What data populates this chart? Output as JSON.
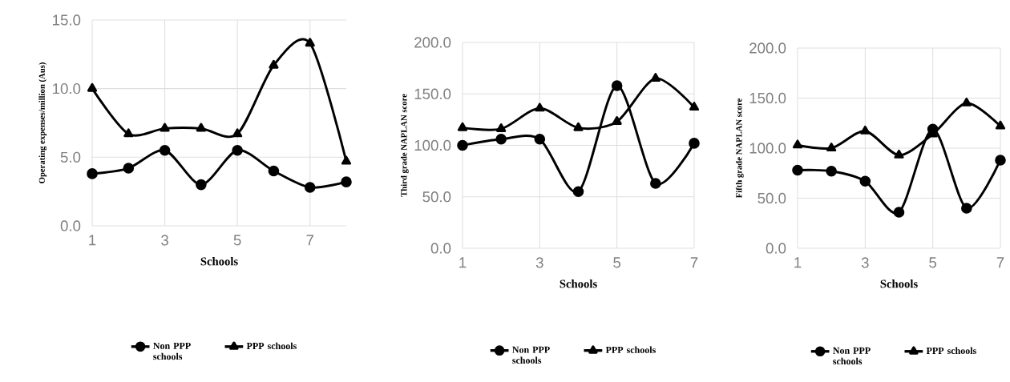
{
  "chart_data": [
    {
      "type": "line",
      "xlabel": "Schools",
      "ylabel": "Operating expenses/million (Aus)",
      "x": [
        1,
        2,
        3,
        4,
        5,
        6,
        7,
        8
      ],
      "xlim": [
        1,
        8
      ],
      "xticks": [
        1,
        3,
        5,
        7
      ],
      "ylim": [
        0,
        15
      ],
      "yticks": [
        {
          "value": 0,
          "label": "0.0"
        },
        {
          "value": 5,
          "label": "5.0"
        },
        {
          "value": 10,
          "label": "10.0"
        },
        {
          "value": 15,
          "label": "15.0"
        }
      ],
      "grid": true,
      "legend": "bottom",
      "series": [
        {
          "name": "Non  PPP schools",
          "color": "#000000",
          "marker": "circle",
          "values": [
            3.8,
            4.2,
            5.5,
            3.0,
            5.5,
            4.0,
            2.8,
            3.2
          ]
        },
        {
          "name": "PPP schools",
          "color": "#000000",
          "marker": "triangle",
          "values": [
            10.0,
            6.7,
            7.1,
            7.1,
            6.7,
            11.7,
            13.3,
            4.7
          ]
        }
      ]
    },
    {
      "type": "line",
      "xlabel": "Schools",
      "ylabel": "Third grade NAPLAN score",
      "x": [
        1,
        2,
        3,
        4,
        5,
        6,
        7
      ],
      "xlim": [
        1,
        7
      ],
      "xticks": [
        1,
        3,
        5,
        7
      ],
      "ylim": [
        0,
        200
      ],
      "yticks": [
        {
          "value": 0,
          "label": "0.0"
        },
        {
          "value": 50,
          "label": "50.0"
        },
        {
          "value": 100,
          "label": "100.0"
        },
        {
          "value": 150,
          "label": "150.0"
        },
        {
          "value": 200,
          "label": "200.0"
        }
      ],
      "grid": true,
      "legend": "bottom",
      "series": [
        {
          "name": "Non  PPP schools",
          "color": "#000000",
          "marker": "circle",
          "values": [
            100,
            106,
            106,
            55,
            158,
            63,
            102
          ]
        },
        {
          "name": "PPP schools",
          "color": "#000000",
          "marker": "triangle",
          "values": [
            117,
            116,
            136,
            117,
            123,
            165,
            137
          ]
        }
      ]
    },
    {
      "type": "line",
      "xlabel": "Schools",
      "ylabel": "Fifth grade NAPLAN score",
      "x": [
        1,
        2,
        3,
        4,
        5,
        6,
        7
      ],
      "xlim": [
        1,
        7
      ],
      "xticks": [
        1,
        3,
        5,
        7
      ],
      "ylim": [
        0,
        200
      ],
      "yticks": [
        {
          "value": 0,
          "label": "0.0"
        },
        {
          "value": 50,
          "label": "50.0"
        },
        {
          "value": 100,
          "label": "100.0"
        },
        {
          "value": 150,
          "label": "150.0"
        },
        {
          "value": 200,
          "label": "200.0"
        }
      ],
      "grid": true,
      "legend": "bottom",
      "series": [
        {
          "name": "Non  PPP schools",
          "color": "#000000",
          "marker": "circle",
          "values": [
            78,
            77,
            67,
            36,
            119,
            40,
            88
          ]
        },
        {
          "name": "PPP schools",
          "color": "#000000",
          "marker": "triangle",
          "values": [
            103,
            100,
            117,
            93,
            114,
            145,
            122
          ]
        }
      ]
    }
  ]
}
